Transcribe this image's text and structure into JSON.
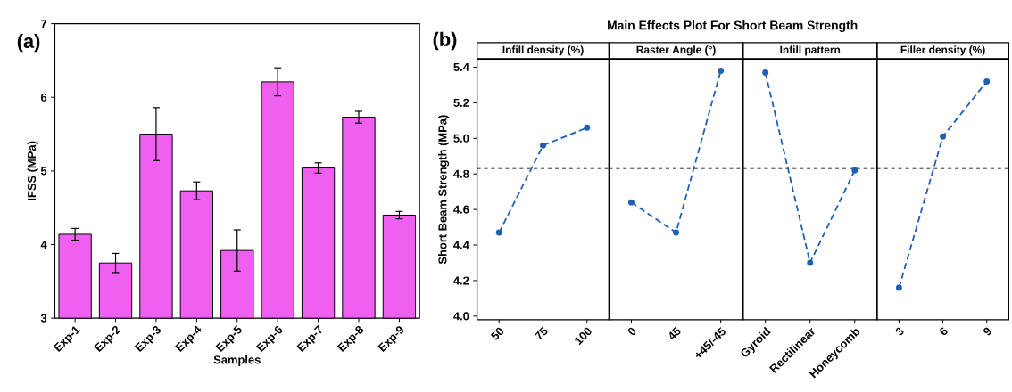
{
  "chart_data": [
    {
      "type": "bar",
      "categories": [
        "Exp-1",
        "Exp-2",
        "Exp-3",
        "Exp-4",
        "Exp-5",
        "Exp-6",
        "Exp-7",
        "Exp-8",
        "Exp-9"
      ],
      "values": [
        4.14,
        3.75,
        5.5,
        4.73,
        3.92,
        6.21,
        5.04,
        5.73,
        4.4
      ],
      "errors": [
        0.08,
        0.13,
        0.36,
        0.12,
        0.28,
        0.19,
        0.07,
        0.08,
        0.05
      ],
      "color": "#f060f0",
      "xlabel": "Samples",
      "ylabel": "IFSS (MPa)",
      "ylim": [
        3,
        7
      ],
      "yticks": [
        3,
        4,
        5,
        6,
        7
      ],
      "annotations": [
        "(a)"
      ]
    },
    {
      "type": "line",
      "xlabel": "Infill density (%)",
      "ylabel": "Short Beam Strength (MPa)",
      "categories": [
        "50",
        "75",
        "100"
      ],
      "values": [
        4.47,
        4.96,
        5.06
      ],
      "color": "#1f5fb4",
      "marker": "circle",
      "line_style": "dashed",
      "ylim": [
        3.98,
        5.445
      ],
      "yticks": [
        {
          "value": 4.0,
          "label": "4.0"
        },
        {
          "value": 4.2,
          "label": "4.2"
        },
        {
          "value": 4.4,
          "label": "4.4"
        },
        {
          "value": 4.6,
          "label": "4.6"
        },
        {
          "value": 4.8,
          "label": "4.8"
        },
        {
          "value": 5.0,
          "label": "5.0"
        },
        {
          "value": 5.2,
          "label": "5.2"
        },
        {
          "value": 5.4,
          "label": "5.4"
        }
      ],
      "ref_lines": [
        {
          "axis": "y",
          "value": 4.83,
          "line_style": "dashed"
        }
      ],
      "annotations": [
        "(b)"
      ]
    },
    {
      "type": "line",
      "title": "Main Effects Plot For Short Beam Strength",
      "xlabel": "Raster Angle (°)",
      "categories": [
        "0",
        "45",
        "+45/-45"
      ],
      "values": [
        4.64,
        4.47,
        5.38
      ],
      "color": "#1f5fb4",
      "marker": "circle",
      "line_style": "dashed",
      "ylim": [
        3.98,
        5.445
      ],
      "tick_labels": "x",
      "ref_lines": [
        {
          "axis": "y",
          "value": 4.83,
          "line_style": "dashed"
        }
      ]
    },
    {
      "type": "line",
      "xlabel": "Infill pattern",
      "categories": [
        "Gyroid",
        "Rectilinear",
        "Honeycomb"
      ],
      "values": [
        5.37,
        4.3,
        4.82
      ],
      "color": "#1f5fb4",
      "marker": "circle",
      "line_style": "dashed",
      "ylim": [
        3.98,
        5.445
      ],
      "tick_labels": "x",
      "ref_lines": [
        {
          "axis": "y",
          "value": 4.83,
          "line_style": "dashed"
        }
      ]
    },
    {
      "type": "line",
      "xlabel": "Filler density (%)",
      "categories": [
        "3",
        "6",
        "9"
      ],
      "values": [
        4.16,
        5.01,
        5.32
      ],
      "color": "#1f5fb4",
      "marker": "circle",
      "line_style": "dashed",
      "ylim": [
        3.98,
        5.445
      ],
      "tick_labels": "x",
      "ref_lines": [
        {
          "axis": "y",
          "value": 4.83,
          "line_style": "dashed"
        }
      ]
    }
  ]
}
